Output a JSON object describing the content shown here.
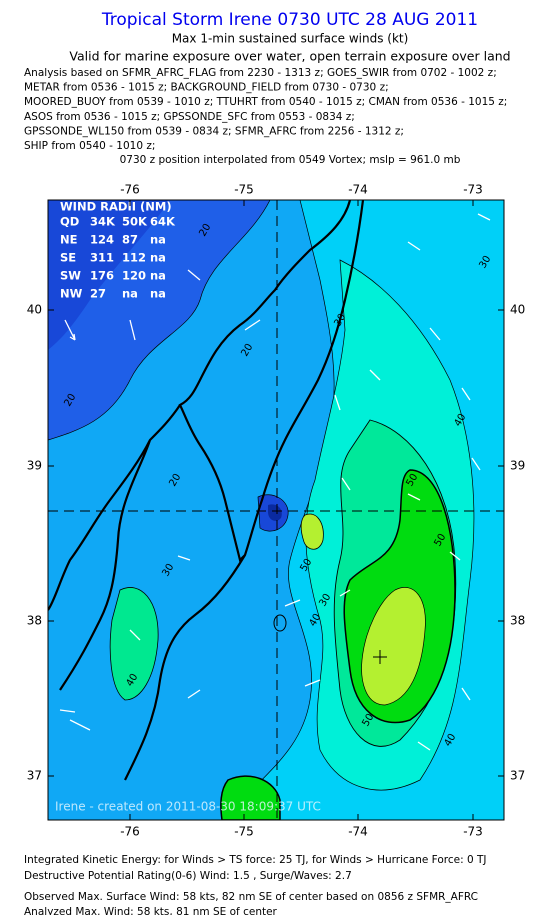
{
  "header": {
    "title": "Tropical Storm Irene 0730 UTC 28 AUG 2011",
    "subtitle": "Max 1-min sustained surface winds (kt)",
    "validity": "Valid for marine exposure over water, open terrain exposure over land",
    "analysis_lines": [
      "Analysis based on SFMR_AFRC_FLAG from 2230 - 1313 z; GOES_SWIR from 0702 - 1002 z;",
      "METAR from 0536 - 1015 z; BACKGROUND_FIELD from 0730 - 0730 z;",
      "MOORED_BUOY from 0539 - 1010 z; TTUHRT from 0540 - 1015 z; CMAN from 0536 - 1015 z;",
      "ASOS from 0536 - 1015 z; GPSSONDE_SFC from 0553 - 0834 z;",
      "GPSSONDE_WL150 from 0539 - 0834 z; SFMR_AFRC from 2256 - 1312 z;",
      "SHIP from 0540 - 1010 z;"
    ],
    "position_note": "0730 z position interpolated from 0549 Vortex; mslp = 961.0 mb"
  },
  "map": {
    "lon_ticks": [
      -76,
      -75,
      -74,
      -73
    ],
    "lat_ticks": [
      40,
      39,
      38,
      37
    ],
    "wind_radii": {
      "title": "WIND RADII (NM)",
      "rows": [
        [
          "QD",
          "34K",
          "50K",
          "64K"
        ],
        [
          "NE",
          "124",
          "87",
          "na"
        ],
        [
          "SE",
          "311",
          "112",
          "na"
        ],
        [
          "SW",
          "176",
          "120",
          "na"
        ],
        [
          "NW",
          "27",
          "na",
          "na"
        ]
      ]
    },
    "contour_labels": [
      "20",
      "20",
      "20",
      "20",
      "30",
      "30",
      "30",
      "30",
      "40",
      "40",
      "40",
      "40",
      "50",
      "50",
      "50",
      "50"
    ],
    "watermark": "Irene  -  created on 2011-08-30 18:09:37 UTC"
  },
  "footer": {
    "lines": [
      "Integrated Kinetic Energy:  for Winds > TS force: 25 TJ,  for Winds > Hurricane Force: 0 TJ",
      "Destructive Potential Rating(0-6)   Wind: 1.5 , Surge/Waves: 2.7",
      "Observed Max. Surface Wind: 58 kts, 82 nm SE of center based on 0856 z SFMR_AFRC",
      "Analyzed Max. Wind: 58 kts, 81 nm SE of center"
    ]
  }
}
